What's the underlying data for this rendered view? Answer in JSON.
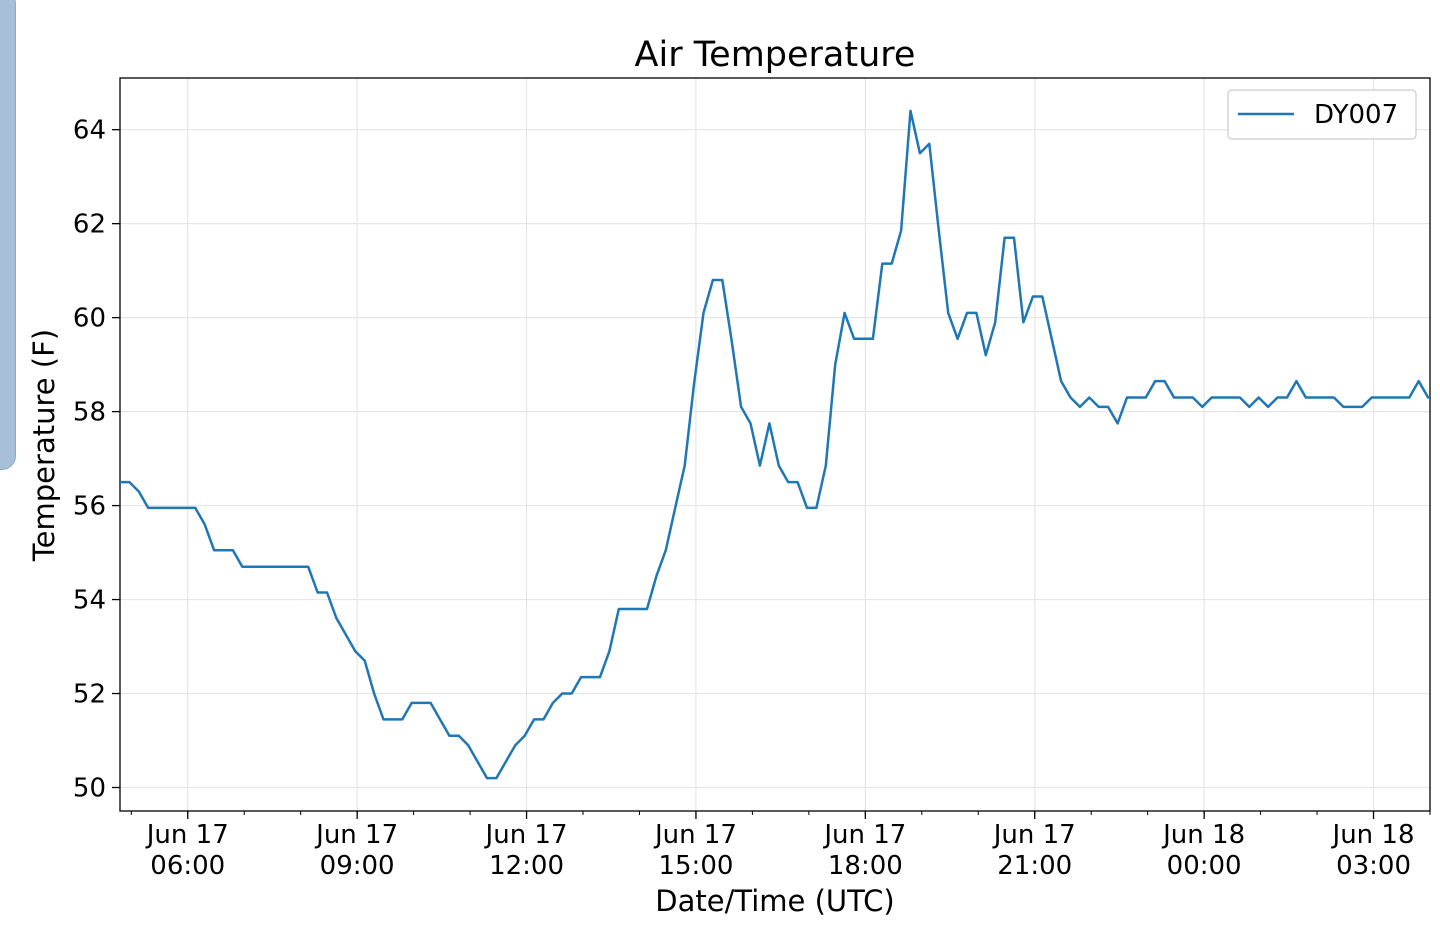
{
  "chart_data": {
    "type": "line",
    "title": "Air Temperature",
    "xlabel": "Date/Time (UTC)",
    "ylabel": "Temperature (F)",
    "ylim": [
      49.5,
      65.1
    ],
    "yticks": [
      50,
      52,
      54,
      56,
      58,
      60,
      62,
      64
    ],
    "xlim": [
      "2017-06-17T04:48",
      "2017-06-18T04:00"
    ],
    "xticks": [
      {
        "time": "2017-06-17T06:00",
        "line1": "Jun 17",
        "line2": "06:00"
      },
      {
        "time": "2017-06-17T09:00",
        "line1": "Jun 17",
        "line2": "09:00"
      },
      {
        "time": "2017-06-17T12:00",
        "line1": "Jun 17",
        "line2": "12:00"
      },
      {
        "time": "2017-06-17T15:00",
        "line1": "Jun 17",
        "line2": "15:00"
      },
      {
        "time": "2017-06-17T18:00",
        "line1": "Jun 17",
        "line2": "18:00"
      },
      {
        "time": "2017-06-17T21:00",
        "line1": "Jun 17",
        "line2": "21:00"
      },
      {
        "time": "2017-06-18T00:00",
        "line1": "Jun 18",
        "line2": "00:00"
      },
      {
        "time": "2017-06-18T03:00",
        "line1": "Jun 18",
        "line2": "03:00"
      }
    ],
    "grid": true,
    "legend_position": "top-right",
    "series": [
      {
        "name": "DY007",
        "color": "#1f77b4",
        "points": [
          [
            "2017-06-17T04:48",
            56.5
          ],
          [
            "2017-06-17T04:58",
            56.5
          ],
          [
            "2017-06-17T05:08",
            56.3
          ],
          [
            "2017-06-17T05:18",
            55.95
          ],
          [
            "2017-06-17T05:28",
            55.95
          ],
          [
            "2017-06-17T05:38",
            55.95
          ],
          [
            "2017-06-17T05:48",
            55.95
          ],
          [
            "2017-06-17T06:00",
            55.95
          ],
          [
            "2017-06-17T06:08",
            55.95
          ],
          [
            "2017-06-17T06:18",
            55.6
          ],
          [
            "2017-06-17T06:28",
            55.05
          ],
          [
            "2017-06-17T06:38",
            55.05
          ],
          [
            "2017-06-17T06:48",
            55.05
          ],
          [
            "2017-06-17T06:58",
            54.7
          ],
          [
            "2017-06-17T07:08",
            54.7
          ],
          [
            "2017-06-17T07:18",
            54.7
          ],
          [
            "2017-06-17T07:28",
            54.7
          ],
          [
            "2017-06-17T07:38",
            54.7
          ],
          [
            "2017-06-17T07:48",
            54.7
          ],
          [
            "2017-06-17T07:58",
            54.7
          ],
          [
            "2017-06-17T08:08",
            54.7
          ],
          [
            "2017-06-17T08:18",
            54.15
          ],
          [
            "2017-06-17T08:28",
            54.15
          ],
          [
            "2017-06-17T08:38",
            53.6
          ],
          [
            "2017-06-17T08:48",
            53.25
          ],
          [
            "2017-06-17T08:58",
            52.9
          ],
          [
            "2017-06-17T09:08",
            52.7
          ],
          [
            "2017-06-17T09:18",
            52.0
          ],
          [
            "2017-06-17T09:28",
            51.45
          ],
          [
            "2017-06-17T09:38",
            51.45
          ],
          [
            "2017-06-17T09:48",
            51.45
          ],
          [
            "2017-06-17T09:58",
            51.8
          ],
          [
            "2017-06-17T10:08",
            51.8
          ],
          [
            "2017-06-17T10:18",
            51.8
          ],
          [
            "2017-06-17T10:28",
            51.45
          ],
          [
            "2017-06-17T10:38",
            51.1
          ],
          [
            "2017-06-17T10:48",
            51.1
          ],
          [
            "2017-06-17T10:58",
            50.9
          ],
          [
            "2017-06-17T11:08",
            50.55
          ],
          [
            "2017-06-17T11:18",
            50.2
          ],
          [
            "2017-06-17T11:28",
            50.2
          ],
          [
            "2017-06-17T11:38",
            50.55
          ],
          [
            "2017-06-17T11:48",
            50.9
          ],
          [
            "2017-06-17T11:58",
            51.1
          ],
          [
            "2017-06-17T12:08",
            51.45
          ],
          [
            "2017-06-17T12:18",
            51.45
          ],
          [
            "2017-06-17T12:28",
            51.8
          ],
          [
            "2017-06-17T12:38",
            52.0
          ],
          [
            "2017-06-17T12:48",
            52.0
          ],
          [
            "2017-06-17T12:58",
            52.35
          ],
          [
            "2017-06-17T13:08",
            52.35
          ],
          [
            "2017-06-17T13:18",
            52.35
          ],
          [
            "2017-06-17T13:28",
            52.9
          ],
          [
            "2017-06-17T13:38",
            53.8
          ],
          [
            "2017-06-17T13:48",
            53.8
          ],
          [
            "2017-06-17T13:58",
            53.8
          ],
          [
            "2017-06-17T14:08",
            53.8
          ],
          [
            "2017-06-17T14:18",
            54.5
          ],
          [
            "2017-06-17T14:28",
            55.05
          ],
          [
            "2017-06-17T14:38",
            55.95
          ],
          [
            "2017-06-17T14:48",
            56.85
          ],
          [
            "2017-06-17T14:58",
            58.6
          ],
          [
            "2017-06-17T15:08",
            60.1
          ],
          [
            "2017-06-17T15:18",
            60.8
          ],
          [
            "2017-06-17T15:28",
            60.8
          ],
          [
            "2017-06-17T15:38",
            59.5
          ],
          [
            "2017-06-17T15:48",
            58.1
          ],
          [
            "2017-06-17T15:58",
            57.75
          ],
          [
            "2017-06-17T16:08",
            56.85
          ],
          [
            "2017-06-17T16:18",
            57.75
          ],
          [
            "2017-06-17T16:28",
            56.85
          ],
          [
            "2017-06-17T16:38",
            56.5
          ],
          [
            "2017-06-17T16:48",
            56.5
          ],
          [
            "2017-06-17T16:58",
            55.95
          ],
          [
            "2017-06-17T17:08",
            55.95
          ],
          [
            "2017-06-17T17:18",
            56.85
          ],
          [
            "2017-06-17T17:28",
            59.0
          ],
          [
            "2017-06-17T17:38",
            60.1
          ],
          [
            "2017-06-17T17:48",
            59.55
          ],
          [
            "2017-06-17T17:58",
            59.55
          ],
          [
            "2017-06-17T18:08",
            59.55
          ],
          [
            "2017-06-17T18:18",
            61.15
          ],
          [
            "2017-06-17T18:28",
            61.15
          ],
          [
            "2017-06-17T18:38",
            61.85
          ],
          [
            "2017-06-17T18:48",
            64.4
          ],
          [
            "2017-06-17T18:58",
            63.5
          ],
          [
            "2017-06-17T19:08",
            63.7
          ],
          [
            "2017-06-17T19:18",
            61.85
          ],
          [
            "2017-06-17T19:28",
            60.1
          ],
          [
            "2017-06-17T19:38",
            59.55
          ],
          [
            "2017-06-17T19:48",
            60.1
          ],
          [
            "2017-06-17T19:58",
            60.1
          ],
          [
            "2017-06-17T20:08",
            59.2
          ],
          [
            "2017-06-17T20:18",
            59.9
          ],
          [
            "2017-06-17T20:28",
            61.7
          ],
          [
            "2017-06-17T20:38",
            61.7
          ],
          [
            "2017-06-17T20:48",
            59.9
          ],
          [
            "2017-06-17T20:58",
            60.45
          ],
          [
            "2017-06-17T21:08",
            60.45
          ],
          [
            "2017-06-17T21:18",
            59.55
          ],
          [
            "2017-06-17T21:28",
            58.65
          ],
          [
            "2017-06-17T21:38",
            58.3
          ],
          [
            "2017-06-17T21:48",
            58.1
          ],
          [
            "2017-06-17T21:58",
            58.3
          ],
          [
            "2017-06-17T22:08",
            58.1
          ],
          [
            "2017-06-17T22:18",
            58.1
          ],
          [
            "2017-06-17T22:28",
            57.75
          ],
          [
            "2017-06-17T22:38",
            58.3
          ],
          [
            "2017-06-17T22:48",
            58.3
          ],
          [
            "2017-06-17T22:58",
            58.3
          ],
          [
            "2017-06-17T23:08",
            58.65
          ],
          [
            "2017-06-17T23:18",
            58.65
          ],
          [
            "2017-06-17T23:28",
            58.3
          ],
          [
            "2017-06-17T23:38",
            58.3
          ],
          [
            "2017-06-17T23:48",
            58.3
          ],
          [
            "2017-06-17T23:58",
            58.1
          ],
          [
            "2017-06-18T00:08",
            58.3
          ],
          [
            "2017-06-18T00:18",
            58.3
          ],
          [
            "2017-06-18T00:28",
            58.3
          ],
          [
            "2017-06-18T00:38",
            58.3
          ],
          [
            "2017-06-18T00:48",
            58.1
          ],
          [
            "2017-06-18T00:58",
            58.3
          ],
          [
            "2017-06-18T01:08",
            58.1
          ],
          [
            "2017-06-18T01:18",
            58.3
          ],
          [
            "2017-06-18T01:28",
            58.3
          ],
          [
            "2017-06-18T01:38",
            58.65
          ],
          [
            "2017-06-18T01:48",
            58.3
          ],
          [
            "2017-06-18T01:58",
            58.3
          ],
          [
            "2017-06-18T02:08",
            58.3
          ],
          [
            "2017-06-18T02:18",
            58.3
          ],
          [
            "2017-06-18T02:28",
            58.1
          ],
          [
            "2017-06-18T02:38",
            58.1
          ],
          [
            "2017-06-18T02:48",
            58.1
          ],
          [
            "2017-06-18T02:58",
            58.3
          ],
          [
            "2017-06-18T03:08",
            58.3
          ],
          [
            "2017-06-18T03:18",
            58.3
          ],
          [
            "2017-06-18T03:28",
            58.3
          ],
          [
            "2017-06-18T03:38",
            58.3
          ],
          [
            "2017-06-18T03:48",
            58.65
          ],
          [
            "2017-06-18T03:58",
            58.3
          ],
          [
            "2017-06-18T04:00",
            58.3
          ]
        ]
      }
    ]
  }
}
